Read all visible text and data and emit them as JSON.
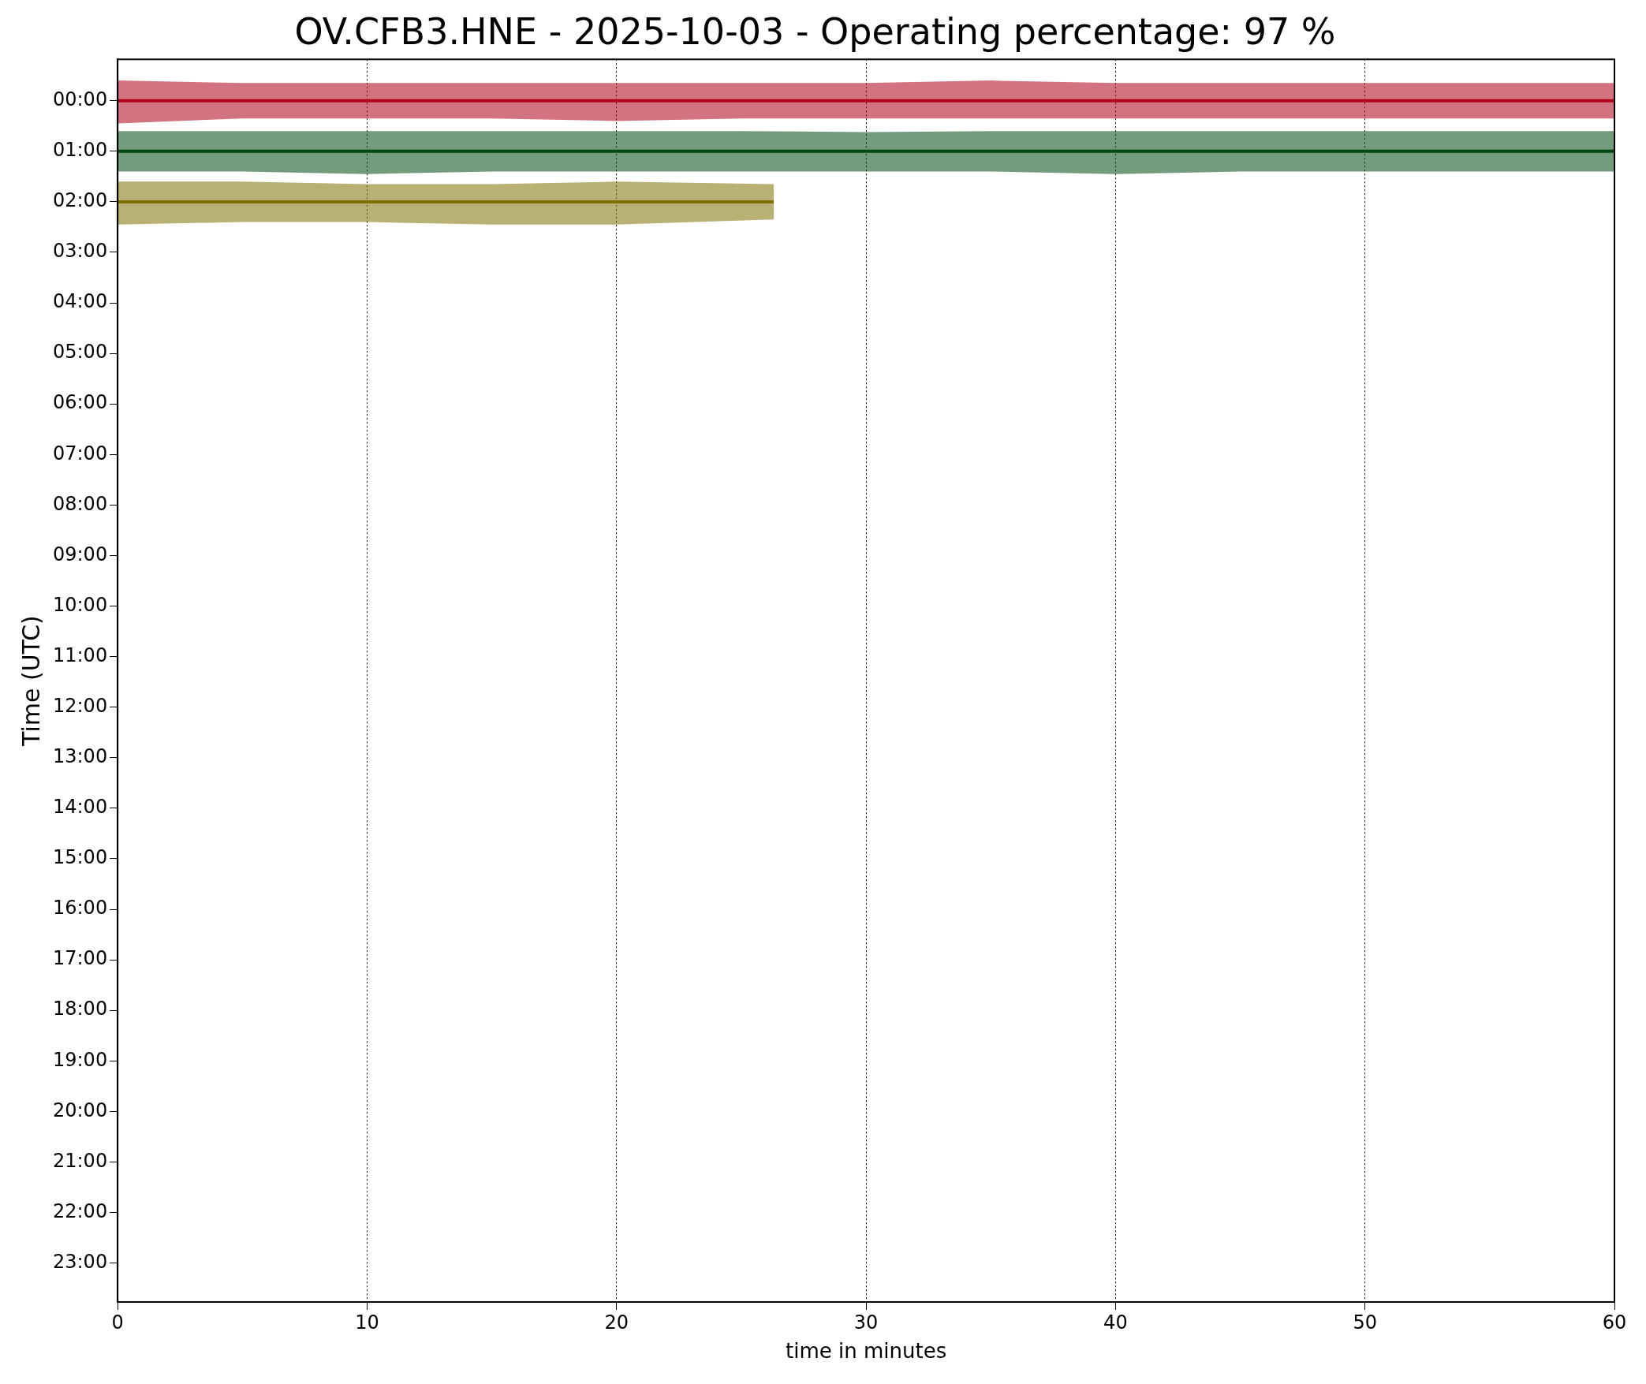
{
  "chart_data": {
    "type": "line",
    "title": "OV.CFB3.HNE - 2025-10-03 - Operating percentage: 97 %",
    "xlabel": "time in minutes",
    "ylabel": "Time (UTC)",
    "xlim": [
      0,
      60
    ],
    "xticks": [
      0,
      10,
      20,
      30,
      40,
      50,
      60
    ],
    "ylim": [
      23.77,
      -0.82
    ],
    "yticks": [
      {
        "value": 0,
        "label": "00:00"
      },
      {
        "value": 1,
        "label": "01:00"
      },
      {
        "value": 2,
        "label": "02:00"
      },
      {
        "value": 3,
        "label": "03:00"
      },
      {
        "value": 4,
        "label": "04:00"
      },
      {
        "value": 5,
        "label": "05:00"
      },
      {
        "value": 6,
        "label": "06:00"
      },
      {
        "value": 7,
        "label": "07:00"
      },
      {
        "value": 8,
        "label": "08:00"
      },
      {
        "value": 9,
        "label": "09:00"
      },
      {
        "value": 10,
        "label": "10:00"
      },
      {
        "value": 11,
        "label": "11:00"
      },
      {
        "value": 12,
        "label": "12:00"
      },
      {
        "value": 13,
        "label": "13:00"
      },
      {
        "value": 14,
        "label": "14:00"
      },
      {
        "value": 15,
        "label": "15:00"
      },
      {
        "value": 16,
        "label": "16:00"
      },
      {
        "value": 17,
        "label": "17:00"
      },
      {
        "value": 18,
        "label": "18:00"
      },
      {
        "value": 19,
        "label": "19:00"
      },
      {
        "value": 20,
        "label": "20:00"
      },
      {
        "value": 21,
        "label": "21:00"
      },
      {
        "value": 22,
        "label": "22:00"
      },
      {
        "value": 23,
        "label": "23:00"
      }
    ],
    "grid": "x",
    "marker": "none",
    "line_style": "solid",
    "legend": false,
    "series": [
      {
        "color": "#b00018",
        "x": [
          0,
          5,
          10,
          15,
          20,
          25,
          30,
          35,
          40,
          45,
          50,
          55,
          60
        ],
        "values": [
          0,
          0,
          0,
          0,
          0,
          0,
          0,
          0,
          0,
          0,
          0,
          0,
          0
        ],
        "lower": [
          -0.4,
          -0.35,
          -0.35,
          -0.35,
          -0.35,
          -0.35,
          -0.35,
          -0.4,
          -0.35,
          -0.35,
          -0.35,
          -0.35,
          -0.35
        ],
        "upper": [
          0.45,
          0.35,
          0.35,
          0.35,
          0.4,
          0.35,
          0.35,
          0.35,
          0.35,
          0.35,
          0.35,
          0.35,
          0.35
        ]
      },
      {
        "color": "#004a12",
        "x": [
          0,
          5,
          10,
          15,
          20,
          25,
          30,
          35,
          40,
          45,
          50,
          55,
          60
        ],
        "values": [
          1,
          1,
          1,
          1,
          1,
          1,
          1,
          1,
          1,
          1,
          1,
          1,
          1
        ],
        "lower": [
          0.6,
          0.6,
          0.6,
          0.6,
          0.6,
          0.6,
          0.62,
          0.6,
          0.6,
          0.6,
          0.6,
          0.6,
          0.6
        ],
        "upper": [
          1.4,
          1.4,
          1.45,
          1.4,
          1.4,
          1.4,
          1.4,
          1.4,
          1.45,
          1.4,
          1.4,
          1.4,
          1.4
        ]
      },
      {
        "color": "#806f00",
        "x": [
          0,
          5,
          10,
          15,
          20,
          26.3
        ],
        "values": [
          2,
          2,
          2,
          2,
          2,
          2
        ],
        "lower": [
          1.6,
          1.6,
          1.65,
          1.65,
          1.6,
          1.65
        ],
        "upper": [
          2.45,
          2.4,
          2.4,
          2.45,
          2.45,
          2.35
        ]
      }
    ]
  }
}
